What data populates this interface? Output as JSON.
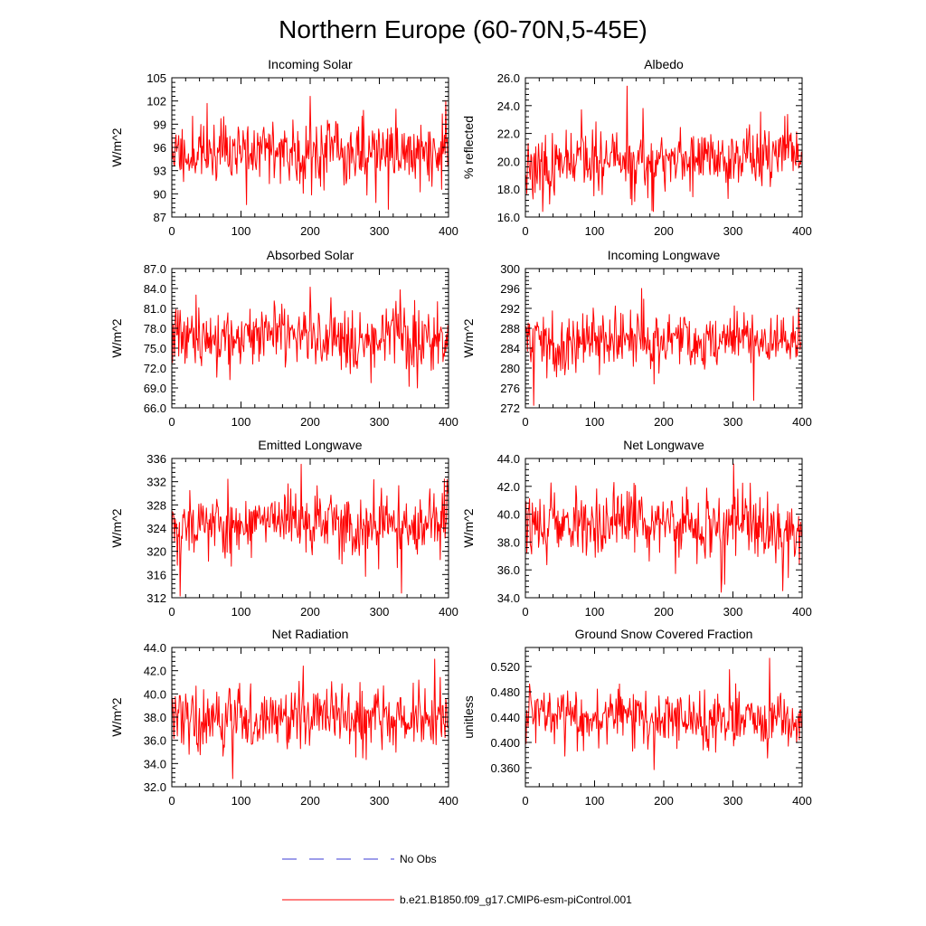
{
  "figure": {
    "title": "Northern Europe (60-70N,5-45E)"
  },
  "legend": {
    "position": "bottom-center",
    "entries": [
      {
        "label": "No Obs",
        "color": "#3b3bd6",
        "style": "dashed"
      },
      {
        "label": "b.e21.B1850.f09_g17.CMIP6-esm-piControl.001",
        "color": "#ff0000",
        "style": "solid"
      }
    ]
  },
  "series_color": "#ff0000",
  "chart_data": [
    {
      "type": "line",
      "title": "Incoming Solar",
      "xlabel": "",
      "ylabel": "W/m^2",
      "xlim": [
        0,
        400
      ],
      "ylim": [
        87,
        105
      ],
      "xticks": [
        0,
        100,
        200,
        300,
        400
      ],
      "xtick_labels": [
        "0",
        "100",
        "200",
        "300",
        "400"
      ],
      "yticks": [
        87,
        90,
        93,
        96,
        99,
        102,
        105
      ],
      "ytick_labels": [
        "87",
        "90",
        "93",
        "96",
        "99",
        "102",
        "105"
      ],
      "series": [
        {
          "name": "b.e21.B1850.f09_g17.CMIP6-esm-piControl.001",
          "n": 400,
          "mean": 95.5,
          "std": 2.6,
          "min": 88.0,
          "max": 102.6,
          "trend": 0,
          "spikes": [
            [
              200,
              102.6
            ],
            [
              108,
              88.6
            ],
            [
              313,
              88.0
            ]
          ],
          "seed": 11
        }
      ]
    },
    {
      "type": "line",
      "title": "Albedo",
      "xlabel": "",
      "ylabel": "% reflected",
      "xlim": [
        0,
        400
      ],
      "ylim": [
        16.0,
        26.0
      ],
      "xticks": [
        0,
        100,
        200,
        300,
        400
      ],
      "xtick_labels": [
        "0",
        "100",
        "200",
        "300",
        "400"
      ],
      "yticks": [
        16,
        18,
        20,
        22,
        24,
        26
      ],
      "ytick_labels": [
        "16.0",
        "18.0",
        "20.0",
        "22.0",
        "24.0",
        "26.0"
      ],
      "series": [
        {
          "name": "b.e21.B1850.f09_g17.CMIP6-esm-piControl.001",
          "n": 400,
          "mean": 20.0,
          "std": 1.3,
          "min": 16.4,
          "max": 25.4,
          "trend": 0.4,
          "spikes": [
            [
              147,
              25.4
            ],
            [
              185,
              16.4
            ],
            [
              170,
              23.8
            ]
          ],
          "seed": 23
        }
      ]
    },
    {
      "type": "line",
      "title": "Absorbed Solar",
      "xlabel": "",
      "ylabel": "W/m^2",
      "xlim": [
        0,
        400
      ],
      "ylim": [
        66.0,
        87.0
      ],
      "xticks": [
        0,
        100,
        200,
        300,
        400
      ],
      "xtick_labels": [
        "0",
        "100",
        "200",
        "300",
        "400"
      ],
      "yticks": [
        66,
        69,
        72,
        75,
        78,
        81,
        84,
        87
      ],
      "ytick_labels": [
        "66.0",
        "69.0",
        "72.0",
        "75.0",
        "78.0",
        "81.0",
        "84.0",
        "87.0"
      ],
      "series": [
        {
          "name": "b.e21.B1850.f09_g17.CMIP6-esm-piControl.001",
          "n": 400,
          "mean": 76.8,
          "std": 2.8,
          "min": 69.0,
          "max": 84.2,
          "trend": 0,
          "spikes": [
            [
              200,
              84.2
            ],
            [
              330,
              83.8
            ],
            [
              355,
              69.0
            ]
          ],
          "seed": 37
        }
      ]
    },
    {
      "type": "line",
      "title": "Incoming Longwave",
      "xlabel": "",
      "ylabel": "W/m^2",
      "xlim": [
        0,
        400
      ],
      "ylim": [
        272,
        300
      ],
      "xticks": [
        0,
        100,
        200,
        300,
        400
      ],
      "xtick_labels": [
        "0",
        "100",
        "200",
        "300",
        "400"
      ],
      "yticks": [
        272,
        276,
        280,
        284,
        288,
        292,
        296,
        300
      ],
      "ytick_labels": [
        "272",
        "276",
        "280",
        "284",
        "288",
        "292",
        "296",
        "300"
      ],
      "series": [
        {
          "name": "b.e21.B1850.f09_g17.CMIP6-esm-piControl.001",
          "n": 400,
          "mean": 285.5,
          "std": 3.4,
          "min": 272.5,
          "max": 296.0,
          "trend": 0,
          "spikes": [
            [
              168,
              296.0
            ],
            [
              12,
              272.5
            ],
            [
              330,
              273.5
            ]
          ],
          "seed": 41
        }
      ]
    },
    {
      "type": "line",
      "title": "Emitted Longwave",
      "xlabel": "",
      "ylabel": "W/m^2",
      "xlim": [
        0,
        400
      ],
      "ylim": [
        312,
        336
      ],
      "xticks": [
        0,
        100,
        200,
        300,
        400
      ],
      "xtick_labels": [
        "0",
        "100",
        "200",
        "300",
        "400"
      ],
      "yticks": [
        312,
        316,
        320,
        324,
        328,
        332,
        336
      ],
      "ytick_labels": [
        "312",
        "316",
        "320",
        "324",
        "328",
        "332",
        "336"
      ],
      "series": [
        {
          "name": "b.e21.B1850.f09_g17.CMIP6-esm-piControl.001",
          "n": 400,
          "mean": 324.8,
          "std": 3.3,
          "min": 312.3,
          "max": 335.0,
          "trend": 0,
          "spikes": [
            [
              187,
              335.0
            ],
            [
              12,
              312.3
            ],
            [
              332,
              312.8
            ]
          ],
          "seed": 53
        }
      ]
    },
    {
      "type": "line",
      "title": "Net Longwave",
      "xlabel": "",
      "ylabel": "W/m^2",
      "xlim": [
        0,
        400
      ],
      "ylim": [
        34.0,
        44.0
      ],
      "xticks": [
        0,
        100,
        200,
        300,
        400
      ],
      "xtick_labels": [
        "0",
        "100",
        "200",
        "300",
        "400"
      ],
      "yticks": [
        34,
        36,
        38,
        40,
        42,
        44
      ],
      "ytick_labels": [
        "34.0",
        "36.0",
        "38.0",
        "40.0",
        "42.0",
        "44.0"
      ],
      "series": [
        {
          "name": "b.e21.B1850.f09_g17.CMIP6-esm-piControl.001",
          "n": 400,
          "mean": 39.0,
          "std": 1.4,
          "min": 34.4,
          "max": 43.6,
          "trend": 0,
          "spikes": [
            [
              301,
              43.6
            ],
            [
              283,
              34.4
            ],
            [
              372,
              34.5
            ]
          ],
          "seed": 67
        }
      ]
    },
    {
      "type": "line",
      "title": "Net Radiation",
      "xlabel": "",
      "ylabel": "W/m^2",
      "xlim": [
        0,
        400
      ],
      "ylim": [
        32.0,
        44.0
      ],
      "xticks": [
        0,
        100,
        200,
        300,
        400
      ],
      "xtick_labels": [
        "0",
        "100",
        "200",
        "300",
        "400"
      ],
      "yticks": [
        32,
        34,
        36,
        38,
        40,
        42,
        44
      ],
      "ytick_labels": [
        "32.0",
        "34.0",
        "36.0",
        "38.0",
        "40.0",
        "42.0",
        "44.0"
      ],
      "series": [
        {
          "name": "b.e21.B1850.f09_g17.CMIP6-esm-piControl.001",
          "n": 400,
          "mean": 38.0,
          "std": 1.6,
          "min": 32.7,
          "max": 43.0,
          "trend": 0,
          "spikes": [
            [
              380,
              43.0
            ],
            [
              88,
              32.7
            ],
            [
              190,
              42.4
            ]
          ],
          "seed": 79
        }
      ]
    },
    {
      "type": "line",
      "title": "Ground Snow Covered Fraction",
      "xlabel": "",
      "ylabel": "unitless",
      "xlim": [
        0,
        400
      ],
      "ylim": [
        0.33,
        0.55
      ],
      "xticks": [
        0,
        100,
        200,
        300,
        400
      ],
      "xtick_labels": [
        "0",
        "100",
        "200",
        "300",
        "400"
      ],
      "yticks": [
        0.36,
        0.4,
        0.44,
        0.48,
        0.52
      ],
      "ytick_labels": [
        "0.360",
        "0.400",
        "0.440",
        "0.480",
        "0.520"
      ],
      "series": [
        {
          "name": "b.e21.B1850.f09_g17.CMIP6-esm-piControl.001",
          "n": 400,
          "mean": 0.437,
          "std": 0.027,
          "min": 0.357,
          "max": 0.533,
          "trend": 0.01,
          "spikes": [
            [
              353,
              0.533
            ],
            [
              186,
              0.357
            ],
            [
              295,
              0.515
            ]
          ],
          "seed": 97
        }
      ]
    }
  ]
}
